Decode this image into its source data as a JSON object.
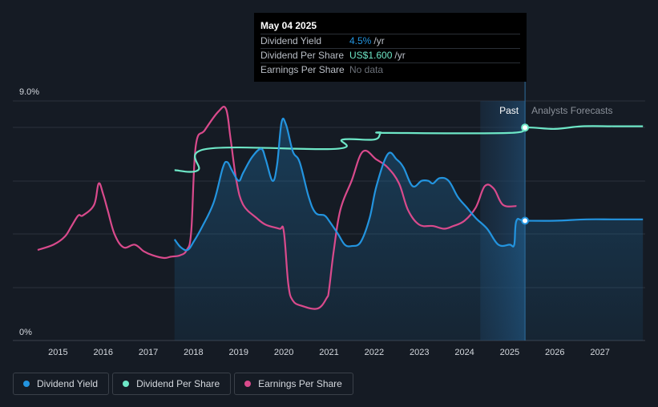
{
  "tooltip": {
    "date": "May 04 2025",
    "rows": [
      {
        "label": "Dividend Yield",
        "value": "4.5%",
        "unit": "/yr"
      },
      {
        "label": "Dividend Per Share",
        "value": "US$1.600",
        "unit": "/yr"
      },
      {
        "label": "Earnings Per Share",
        "value": "No data",
        "unit": ""
      }
    ]
  },
  "legend": [
    {
      "label": "Dividend Yield",
      "color": "#2394df"
    },
    {
      "label": "Dividend Per Share",
      "color": "#6ee7c7"
    },
    {
      "label": "Earnings Per Share",
      "color": "#d94a8c"
    }
  ],
  "chart_data": {
    "type": "line",
    "y_axis": {
      "top_label": "9.0%",
      "bottom_label": "0%",
      "ylim": [
        0,
        9.0
      ]
    },
    "x_ticks": [
      "2015",
      "2016",
      "2017",
      "2018",
      "2019",
      "2020",
      "2021",
      "2022",
      "2023",
      "2024",
      "2025",
      "2026",
      "2027"
    ],
    "xlim": [
      2014.0,
      2028.0
    ],
    "past_label": "Past",
    "forecast_label": "Analysts Forecasts",
    "forecast_start": 2024.35,
    "current_date": 2025.34,
    "series": [
      {
        "name": "Dividend Yield",
        "color": "#2394df",
        "unit": "%",
        "x": [
          2017.58,
          2017.72,
          2017.87,
          2018.0,
          2018.2,
          2018.45,
          2018.65,
          2018.75,
          2018.85,
          2019.0,
          2019.1,
          2019.3,
          2019.5,
          2019.6,
          2019.75,
          2019.85,
          2019.95,
          2020.05,
          2020.2,
          2020.35,
          2020.55,
          2020.7,
          2020.9,
          2021.0,
          2021.2,
          2021.35,
          2021.5,
          2021.7,
          2021.9,
          2022.05,
          2022.3,
          2022.5,
          2022.65,
          2022.85,
          2023.05,
          2023.2,
          2023.3,
          2023.45,
          2023.65,
          2023.85,
          2024.05,
          2024.25,
          2024.5,
          2024.75,
          2025.0,
          2025.1,
          2025.15,
          2025.34,
          2026.0,
          2026.7,
          2027.3,
          2027.95
        ],
        "y": [
          3.8,
          3.5,
          3.4,
          3.7,
          4.3,
          5.2,
          6.5,
          6.7,
          6.4,
          6.0,
          6.3,
          6.9,
          7.2,
          6.8,
          6.0,
          6.6,
          8.2,
          8.1,
          7.1,
          6.7,
          5.4,
          4.8,
          4.7,
          4.5,
          4.0,
          3.6,
          3.55,
          3.7,
          4.6,
          5.8,
          7.0,
          6.8,
          6.5,
          5.8,
          6.0,
          6.0,
          5.9,
          6.1,
          6.0,
          5.4,
          5.0,
          4.6,
          4.2,
          3.6,
          3.6,
          3.6,
          4.5,
          4.5,
          4.5,
          4.55,
          4.55,
          4.55
        ]
      },
      {
        "name": "Dividend Per Share",
        "color": "#6ee7c7",
        "unit": "US$",
        "x": [
          2017.58,
          2018.1,
          2018.3,
          2021.15,
          2021.3,
          2022.0,
          2022.15,
          2022.3,
          2025.0,
          2025.34,
          2026.0,
          2026.6,
          2027.3,
          2027.95
        ],
        "y": [
          6.4,
          6.4,
          7.2,
          7.2,
          7.55,
          7.55,
          7.8,
          7.8,
          7.8,
          8.0,
          7.95,
          8.05,
          8.05,
          8.05
        ],
        "marker": {
          "x": 2025.34,
          "y": 8.0
        }
      },
      {
        "name": "Earnings Per Share",
        "color": "#d94a8c",
        "unit": "US$",
        "x": [
          2014.55,
          2014.9,
          2015.15,
          2015.3,
          2015.45,
          2015.55,
          2015.8,
          2015.9,
          2016.0,
          2016.1,
          2016.25,
          2016.45,
          2016.7,
          2016.9,
          2017.1,
          2017.35,
          2017.5,
          2017.7,
          2017.85,
          2017.95,
          2018.05,
          2018.25,
          2018.55,
          2018.72,
          2018.82,
          2018.95,
          2019.1,
          2019.4,
          2019.6,
          2019.9,
          2020.0,
          2020.1,
          2020.2,
          2020.4,
          2020.75,
          2020.95,
          2021.0,
          2021.1,
          2021.25,
          2021.5,
          2021.75,
          2022.05,
          2022.3,
          2022.55,
          2022.75,
          2023.0,
          2023.3,
          2023.55,
          2023.75,
          2024.0,
          2024.25,
          2024.45,
          2024.65,
          2024.85,
          2025.15
        ],
        "y": [
          3.4,
          3.6,
          3.9,
          4.3,
          4.7,
          4.7,
          5.1,
          5.9,
          5.5,
          4.9,
          4.0,
          3.5,
          3.6,
          3.35,
          3.2,
          3.1,
          3.15,
          3.2,
          3.4,
          4.1,
          7.3,
          7.9,
          8.6,
          8.7,
          7.6,
          6.0,
          5.1,
          4.6,
          4.35,
          4.2,
          4.1,
          2.1,
          1.5,
          1.3,
          1.2,
          1.6,
          1.9,
          3.3,
          4.9,
          6.0,
          7.1,
          6.8,
          6.5,
          5.9,
          4.9,
          4.35,
          4.3,
          4.2,
          4.3,
          4.5,
          5.0,
          5.8,
          5.7,
          5.1,
          5.05
        ]
      }
    ]
  }
}
